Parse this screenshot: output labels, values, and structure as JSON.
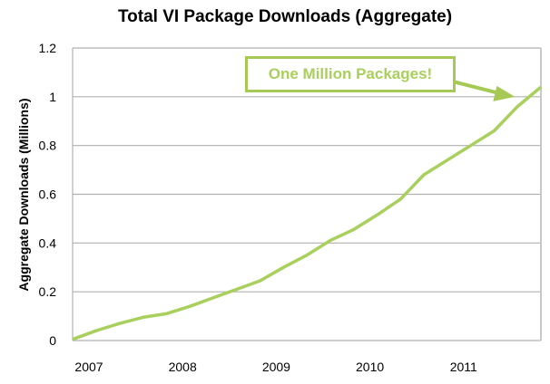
{
  "chart_data": {
    "type": "line",
    "title": "Total VI Package Downloads (Aggregate)",
    "xlabel": "",
    "ylabel": "Aggregate Downloads (Millions)",
    "xlim": [
      2007,
      2012
    ],
    "ylim": [
      0,
      1.2
    ],
    "x_ticks": [
      "2007",
      "2008",
      "2009",
      "2010",
      "2011"
    ],
    "y_ticks": [
      "0",
      "0.2",
      "0.4",
      "0.6",
      "0.8",
      "1",
      "1.2"
    ],
    "grid": "horizontal",
    "line_color": "#a9cf5c",
    "annotation": {
      "text": "One Million Packages!",
      "points_to": [
        2011.8,
        1.0
      ]
    },
    "series": [
      {
        "x": [
          2007.0,
          2007.25,
          2007.5,
          2007.75,
          2008.0,
          2008.25,
          2008.5,
          2008.75,
          2009.0,
          2009.25,
          2009.5,
          2009.75,
          2010.0,
          2010.25,
          2010.5,
          2010.75,
          2011.0,
          2011.25,
          2011.5,
          2011.75,
          2012.0
        ],
        "values": [
          0.005,
          0.04,
          0.07,
          0.095,
          0.11,
          0.14,
          0.175,
          0.21,
          0.245,
          0.3,
          0.35,
          0.41,
          0.455,
          0.515,
          0.58,
          0.68,
          0.74,
          0.8,
          0.86,
          0.96,
          1.04
        ]
      }
    ]
  }
}
